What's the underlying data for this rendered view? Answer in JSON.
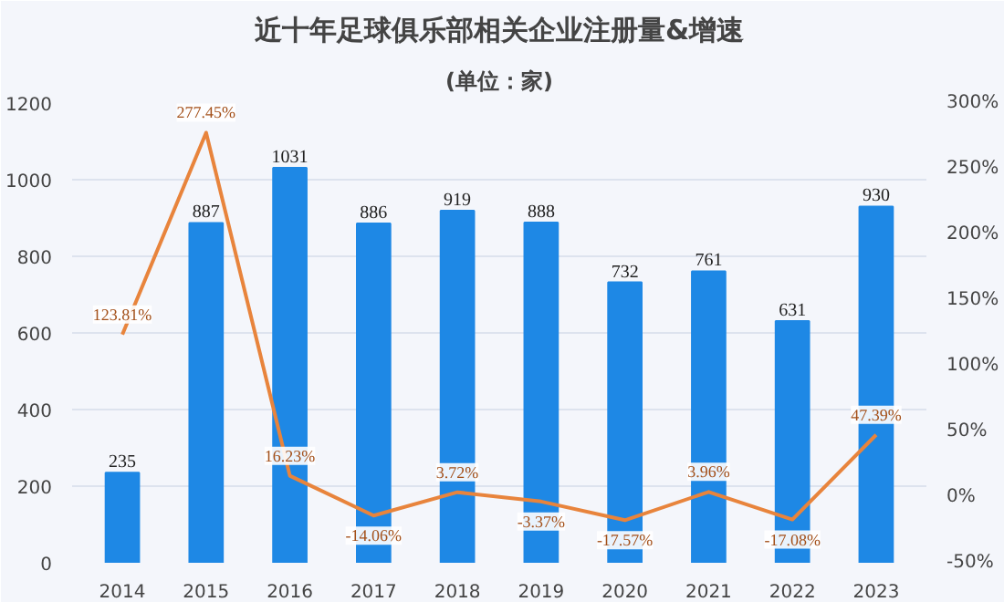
{
  "chart_data": {
    "type": "bar",
    "title": "近十年足球俱乐部相关企业注册量&增速",
    "subtitle": "(单位：家)",
    "categories": [
      "2014",
      "2015",
      "2016",
      "2017",
      "2018",
      "2019",
      "2020",
      "2021",
      "2022",
      "2023"
    ],
    "series": [
      {
        "color": "#1e88e5",
        "values": [
          235,
          887,
          1031,
          886,
          919,
          888,
          732,
          761,
          631,
          930
        ],
        "value_labels": [
          "235",
          "887",
          "1031",
          "886",
          "919",
          "888",
          "732",
          "761",
          "631",
          "930"
        ]
      },
      {
        "type": "line",
        "axis": "y2",
        "color": "#e8843c",
        "values": [
          123.81,
          277.45,
          16.23,
          -14.06,
          3.72,
          -3.37,
          -17.57,
          3.96,
          -17.08,
          47.39
        ],
        "value_labels": [
          "123.81%",
          "277.45%",
          "16.23%",
          "-14.06%",
          "3.72%",
          "-3.37%",
          "-17.57%",
          "3.96%",
          "-17.08%",
          "47.39%"
        ]
      }
    ],
    "ylim": [
      0,
      1200
    ],
    "yticks": [
      0,
      200,
      400,
      600,
      800,
      1000,
      1200
    ],
    "y2lim": [
      -50,
      300
    ],
    "y2ticks": [
      {
        "value": -50,
        "label": "-50%"
      },
      {
        "value": 0,
        "label": "0%"
      },
      {
        "value": 50,
        "label": "50%"
      },
      {
        "value": 100,
        "label": "100%"
      },
      {
        "value": 150,
        "label": "150%"
      },
      {
        "value": 200,
        "label": "200%"
      },
      {
        "value": 250,
        "label": "250%"
      },
      {
        "value": 300,
        "label": "300%"
      }
    ],
    "grid": "y",
    "marker": "none",
    "line_style": "solid"
  }
}
